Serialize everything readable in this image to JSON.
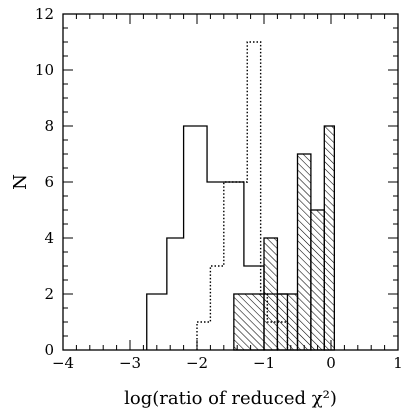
{
  "chart_data": {
    "type": "histogram",
    "title": "",
    "xlabel": "log(ratio of reduced χ²)",
    "ylabel": "N",
    "xlim": [
      -4,
      1
    ],
    "ylim": [
      0,
      12
    ],
    "x_ticks": [
      "−4",
      "−3",
      "−2",
      "−1",
      "0",
      "1"
    ],
    "y_ticks": [
      "0",
      "2",
      "4",
      "6",
      "8",
      "10",
      "12"
    ],
    "grid": false,
    "legend": "none",
    "series": [
      {
        "style": "solid-outline",
        "bins": [
          {
            "x0": -2.75,
            "x1": -2.45,
            "count": 2
          },
          {
            "x0": -2.45,
            "x1": -2.2,
            "count": 4
          },
          {
            "x0": -2.2,
            "x1": -1.85,
            "count": 8
          },
          {
            "x0": -1.85,
            "x1": -1.3,
            "count": 6
          },
          {
            "x0": -1.3,
            "x1": -1.0,
            "count": 3
          },
          {
            "x0": -1.0,
            "x1": -0.65,
            "count": 2
          }
        ]
      },
      {
        "style": "dotted-outline",
        "bins": [
          {
            "x0": -2.0,
            "x1": -1.8,
            "count": 1
          },
          {
            "x0": -1.8,
            "x1": -1.6,
            "count": 3
          },
          {
            "x0": -1.6,
            "x1": -1.25,
            "count": 6
          },
          {
            "x0": -1.25,
            "x1": -1.05,
            "count": 11
          },
          {
            "x0": -1.05,
            "x1": -0.95,
            "count": 2
          },
          {
            "x0": -0.95,
            "x1": -0.65,
            "count": 1
          }
        ]
      },
      {
        "style": "hatched",
        "bins": [
          {
            "x0": -1.45,
            "x1": -1.0,
            "count": 2
          },
          {
            "x0": -1.0,
            "x1": -0.8,
            "count": 4
          },
          {
            "x0": -0.8,
            "x1": -0.5,
            "count": 2
          },
          {
            "x0": -0.5,
            "x1": -0.3,
            "count": 7
          },
          {
            "x0": -0.3,
            "x1": -0.1,
            "count": 5
          },
          {
            "x0": -0.1,
            "x1": 0.05,
            "count": 8
          }
        ]
      }
    ]
  }
}
